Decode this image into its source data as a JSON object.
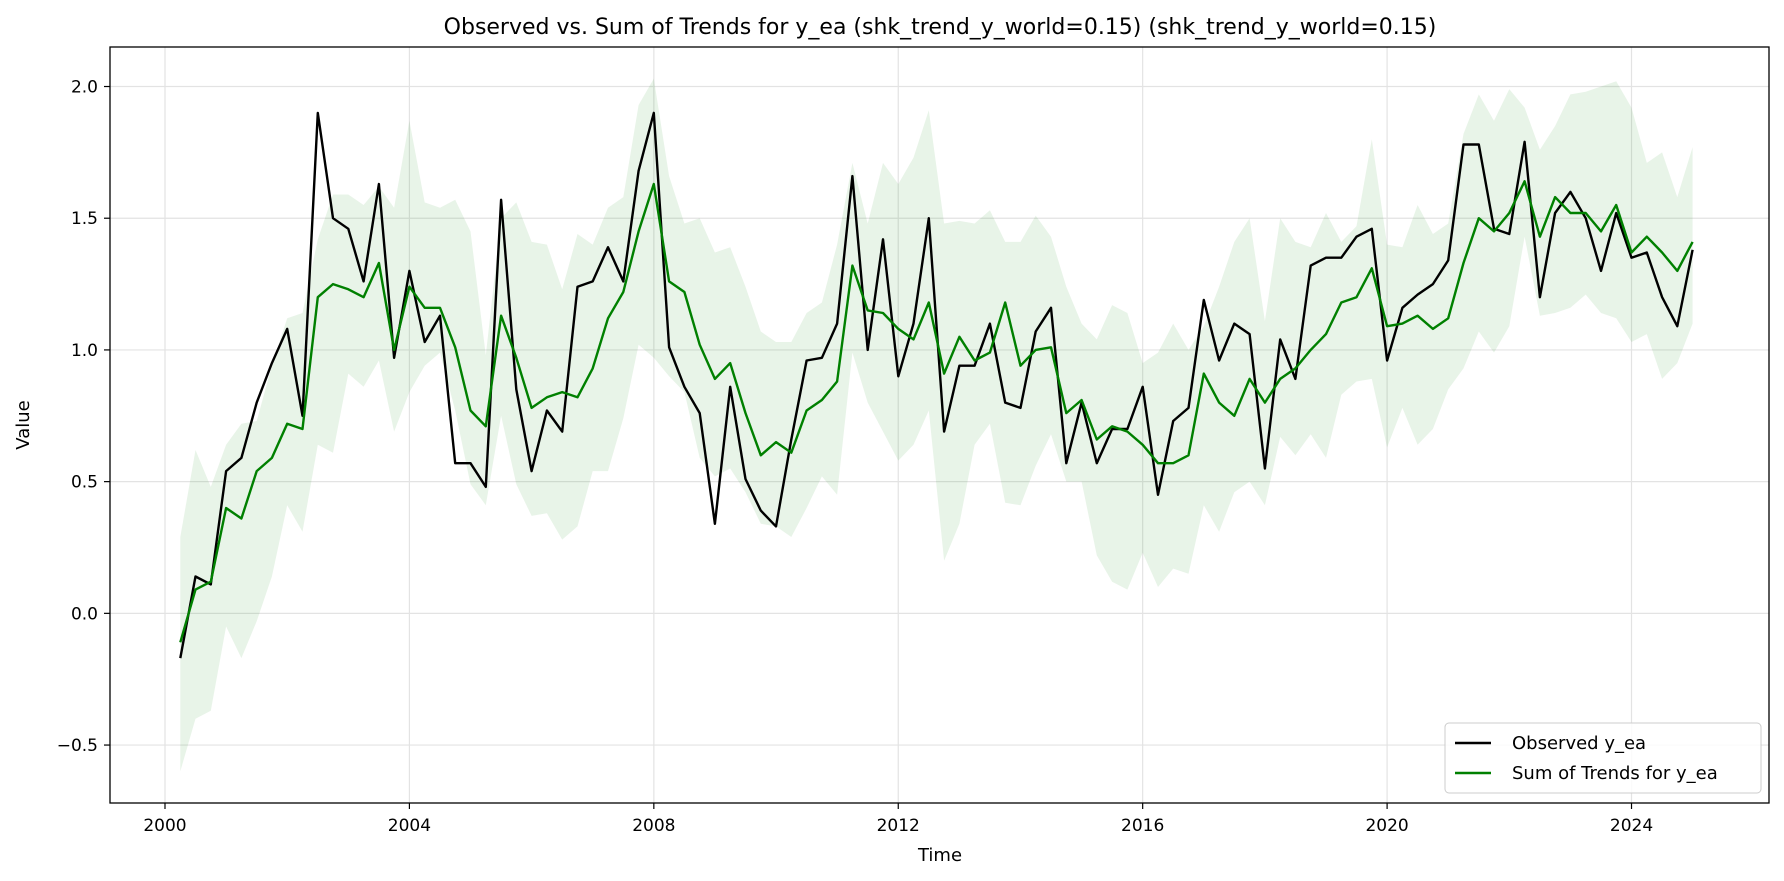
{
  "chart_data": {
    "type": "line",
    "title": "Observed vs. Sum of Trends for y_ea (shk_trend_y_world=0.15) (shk_trend_y_world=0.15)",
    "xlabel": "Time",
    "ylabel": "Value",
    "xlim": [
      1999.1,
      2026.25
    ],
    "ylim": [
      -0.72,
      2.15
    ],
    "xticks": [
      2000,
      2004,
      2008,
      2012,
      2016,
      2020,
      2024
    ],
    "xtick_labels": [
      "2000",
      "2004",
      "2008",
      "2012",
      "2016",
      "2020",
      "2024"
    ],
    "yticks": [
      -0.5,
      0.0,
      0.5,
      1.0,
      1.5,
      2.0
    ],
    "ytick_labels": [
      "−0.5",
      "0.0",
      "0.5",
      "1.0",
      "1.5",
      "2.0"
    ],
    "grid": true,
    "legend_position": "bottom-right",
    "x": [
      2000.25,
      2000.5,
      2000.75,
      2001.0,
      2001.25,
      2001.5,
      2001.75,
      2002.0,
      2002.25,
      2002.5,
      2002.75,
      2003.0,
      2003.25,
      2003.5,
      2003.75,
      2004.0,
      2004.25,
      2004.5,
      2004.75,
      2005.0,
      2005.25,
      2005.5,
      2005.75,
      2006.0,
      2006.25,
      2006.5,
      2006.75,
      2007.0,
      2007.25,
      2007.5,
      2007.75,
      2008.0,
      2008.25,
      2008.5,
      2008.75,
      2009.0,
      2009.25,
      2009.5,
      2009.75,
      2010.0,
      2010.25,
      2010.5,
      2010.75,
      2011.0,
      2011.25,
      2011.5,
      2011.75,
      2012.0,
      2012.25,
      2012.5,
      2012.75,
      2013.0,
      2013.25,
      2013.5,
      2013.75,
      2014.0,
      2014.25,
      2014.5,
      2014.75,
      2015.0,
      2015.25,
      2015.5,
      2015.75,
      2016.0,
      2016.25,
      2016.5,
      2016.75,
      2017.0,
      2017.25,
      2017.5,
      2017.75,
      2018.0,
      2018.25,
      2018.5,
      2018.75,
      2019.0,
      2019.25,
      2019.5,
      2019.75,
      2020.0,
      2020.25,
      2020.5,
      2020.75,
      2021.0,
      2021.25,
      2021.5,
      2021.75,
      2022.0,
      2022.25,
      2022.5,
      2022.75,
      2023.0,
      2023.25,
      2023.5,
      2023.75,
      2024.0,
      2024.25,
      2024.5,
      2024.75,
      2025.0
    ],
    "series": [
      {
        "name": "Observed y_ea",
        "color": "#000000",
        "values": [
          -0.17,
          0.14,
          0.11,
          0.54,
          0.59,
          0.8,
          0.95,
          1.08,
          0.75,
          1.9,
          1.5,
          1.46,
          1.26,
          1.63,
          0.97,
          1.3,
          1.03,
          1.13,
          0.57,
          0.57,
          0.48,
          1.57,
          0.85,
          0.54,
          0.77,
          0.69,
          1.24,
          1.26,
          1.39,
          1.26,
          1.68,
          1.9,
          1.01,
          0.86,
          0.76,
          0.34,
          0.86,
          0.51,
          0.39,
          0.33,
          0.66,
          0.96,
          0.97,
          1.1,
          1.66,
          1.0,
          1.42,
          0.9,
          1.1,
          1.5,
          0.69,
          0.94,
          0.94,
          1.1,
          0.8,
          0.78,
          1.07,
          1.16,
          0.57,
          0.8,
          0.57,
          0.7,
          0.7,
          0.86,
          0.45,
          0.73,
          0.78,
          1.19,
          0.96,
          1.1,
          1.06,
          0.55,
          1.04,
          0.89,
          1.32,
          1.35,
          1.35,
          1.43,
          1.46,
          0.96,
          1.16,
          1.21,
          1.25,
          1.34,
          1.78,
          1.78,
          1.46,
          1.44,
          1.79,
          1.2,
          1.52,
          1.6,
          1.5,
          1.3,
          1.52,
          1.35,
          1.37,
          1.2,
          1.09,
          1.38
        ]
      },
      {
        "name": "Sum of Trends for y_ea",
        "color": "#008000",
        "values": [
          -0.11,
          0.09,
          0.12,
          0.4,
          0.36,
          0.54,
          0.59,
          0.72,
          0.7,
          1.2,
          1.25,
          1.23,
          1.2,
          1.33,
          1.0,
          1.24,
          1.16,
          1.16,
          1.01,
          0.77,
          0.71,
          1.13,
          0.97,
          0.78,
          0.82,
          0.84,
          0.82,
          0.93,
          1.12,
          1.22,
          1.45,
          1.63,
          1.26,
          1.22,
          1.02,
          0.89,
          0.95,
          0.76,
          0.6,
          0.65,
          0.61,
          0.77,
          0.81,
          0.88,
          1.32,
          1.15,
          1.14,
          1.08,
          1.04,
          1.18,
          0.91,
          1.05,
          0.96,
          0.99,
          1.18,
          0.94,
          1.0,
          1.01,
          0.76,
          0.81,
          0.66,
          0.71,
          0.69,
          0.64,
          0.57,
          0.57,
          0.6,
          0.91,
          0.8,
          0.75,
          0.89,
          0.8,
          0.89,
          0.93,
          1.0,
          1.06,
          1.18,
          1.2,
          1.31,
          1.09,
          1.1,
          1.13,
          1.08,
          1.12,
          1.33,
          1.5,
          1.45,
          1.52,
          1.64,
          1.43,
          1.58,
          1.52,
          1.52,
          1.45,
          1.55,
          1.37,
          1.43,
          1.37,
          1.3,
          1.41
        ]
      }
    ],
    "band": {
      "color": "#008000",
      "opacity": 0.09,
      "lower": [
        -0.6,
        -0.4,
        -0.37,
        -0.05,
        -0.17,
        -0.03,
        0.14,
        0.41,
        0.31,
        0.64,
        0.61,
        0.91,
        0.86,
        0.96,
        0.69,
        0.84,
        0.94,
        0.99,
        0.77,
        0.49,
        0.41,
        0.75,
        0.49,
        0.37,
        0.38,
        0.28,
        0.33,
        0.54,
        0.54,
        0.74,
        1.02,
        0.97,
        0.9,
        0.84,
        0.59,
        0.52,
        0.55,
        0.46,
        0.34,
        0.33,
        0.29,
        0.4,
        0.52,
        0.45,
        0.99,
        0.8,
        0.69,
        0.58,
        0.64,
        0.77,
        0.2,
        0.34,
        0.64,
        0.72,
        0.42,
        0.41,
        0.56,
        0.68,
        0.5,
        0.5,
        0.22,
        0.12,
        0.09,
        0.23,
        0.1,
        0.17,
        0.15,
        0.41,
        0.31,
        0.46,
        0.5,
        0.41,
        0.67,
        0.6,
        0.68,
        0.59,
        0.83,
        0.88,
        0.89,
        0.63,
        0.78,
        0.64,
        0.7,
        0.85,
        0.93,
        1.07,
        0.99,
        1.09,
        1.43,
        1.13,
        1.14,
        1.16,
        1.21,
        1.14,
        1.12,
        1.03,
        1.06,
        0.89,
        0.95,
        1.1
      ],
      "upper": [
        0.29,
        0.62,
        0.48,
        0.64,
        0.72,
        0.73,
        0.94,
        1.12,
        1.14,
        1.42,
        1.59,
        1.59,
        1.55,
        1.62,
        1.54,
        1.87,
        1.56,
        1.54,
        1.57,
        1.45,
        0.98,
        1.5,
        1.56,
        1.41,
        1.4,
        1.23,
        1.44,
        1.4,
        1.54,
        1.58,
        1.93,
        2.03,
        1.66,
        1.48,
        1.5,
        1.37,
        1.39,
        1.24,
        1.07,
        1.03,
        1.03,
        1.14,
        1.18,
        1.4,
        1.71,
        1.48,
        1.71,
        1.63,
        1.73,
        1.91,
        1.48,
        1.49,
        1.48,
        1.53,
        1.41,
        1.41,
        1.51,
        1.43,
        1.24,
        1.1,
        1.04,
        1.17,
        1.14,
        0.95,
        0.99,
        1.1,
        1.0,
        1.09,
        1.24,
        1.41,
        1.5,
        1.11,
        1.5,
        1.41,
        1.39,
        1.52,
        1.41,
        1.47,
        1.8,
        1.4,
        1.39,
        1.55,
        1.44,
        1.48,
        1.82,
        1.97,
        1.87,
        1.99,
        1.92,
        1.76,
        1.85,
        1.97,
        1.98,
        2.0,
        2.02,
        1.92,
        1.71,
        1.75,
        1.58,
        1.77
      ]
    }
  }
}
